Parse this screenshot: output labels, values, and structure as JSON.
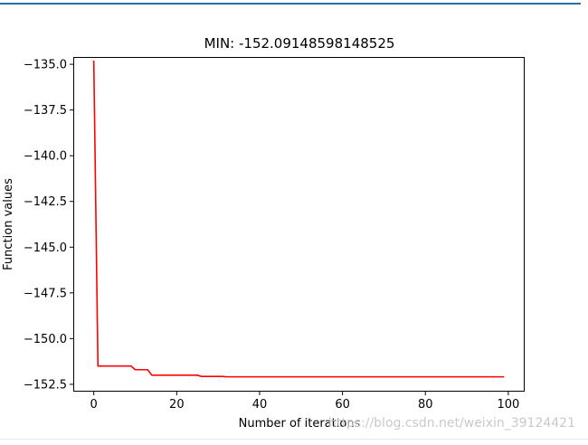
{
  "chart_data": {
    "type": "line",
    "title": "MIN: -152.09148598148525",
    "xlabel": "Number of iterations",
    "ylabel": "Function values",
    "xlim": [
      -4.95,
      103.95
    ],
    "ylim": [
      -152.9,
      -134.6
    ],
    "xticks": [
      0,
      20,
      40,
      60,
      80,
      100
    ],
    "xtick_labels": [
      "0",
      "20",
      "40",
      "60",
      "80",
      "100"
    ],
    "yticks": [
      -135.0,
      -137.5,
      -140.0,
      -142.5,
      -145.0,
      -147.5,
      -150.0,
      -152.5
    ],
    "ytick_labels": [
      "−135.0",
      "−137.5",
      "−140.0",
      "−142.5",
      "−145.0",
      "−147.5",
      "−150.0",
      "−152.5"
    ],
    "grid": false,
    "series": [
      {
        "color": "#ff0000",
        "x": [
          0,
          1,
          2,
          9,
          10,
          13,
          14,
          25,
          26,
          31,
          32,
          99
        ],
        "y": [
          -134.8,
          -151.5,
          -151.5,
          -151.5,
          -151.7,
          -151.7,
          -152.0,
          -152.0,
          -152.07,
          -152.07,
          -152.09,
          -152.09
        ]
      }
    ]
  },
  "watermark": "https://blog.csdn.net/weixin_39124421"
}
